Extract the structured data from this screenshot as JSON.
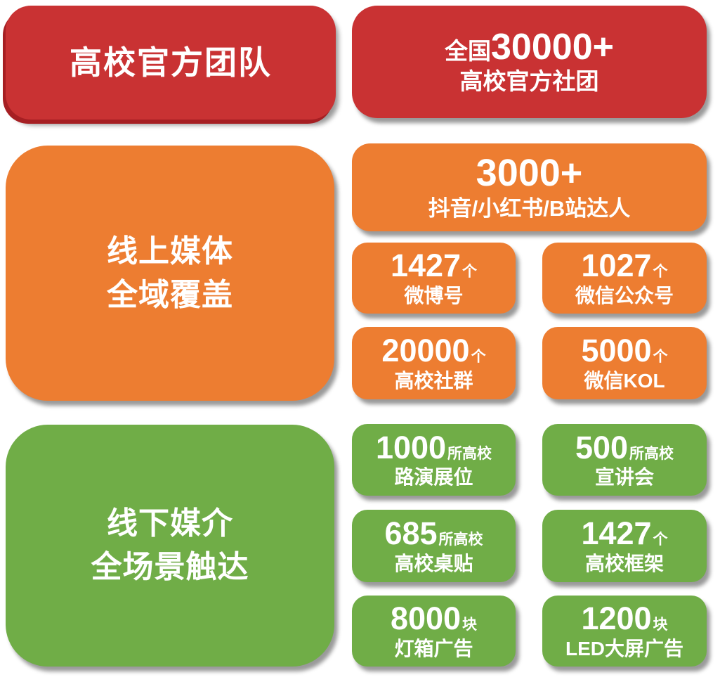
{
  "colors": {
    "red": "#C93233",
    "red_dark": "#A61F23",
    "orange": "#ED7D31",
    "green": "#70AD47",
    "text": "#FFFFFF",
    "background": "#FFFFFF"
  },
  "red_section": {
    "left_title": "高校官方团队",
    "right_card": {
      "prefix": "全国",
      "number": "30000+",
      "label": "高校官方社团"
    }
  },
  "orange_section": {
    "left_title_line1": "线上媒体",
    "left_title_line2": "全域覆盖",
    "wide_card": {
      "number": "3000+",
      "label": "抖音/小红书/B站达人"
    },
    "cells": [
      {
        "number": "1427",
        "unit": "个",
        "label": "微博号"
      },
      {
        "number": "1027",
        "unit": "个",
        "label": "微信公众号"
      },
      {
        "number": "20000",
        "unit": "个",
        "label": "高校社群"
      },
      {
        "number": "5000",
        "unit": "个",
        "label": "微信KOL"
      }
    ]
  },
  "green_section": {
    "left_title_line1": "线下媒介",
    "left_title_line2": "全场景触达",
    "cells": [
      {
        "number": "1000",
        "unit": "所高校",
        "label": "路演展位"
      },
      {
        "number": "500",
        "unit": "所高校",
        "label": "宣讲会"
      },
      {
        "number": "685",
        "unit": "所高校",
        "label": "高校桌贴"
      },
      {
        "number": "1427",
        "unit": "个",
        "label": "高校框架"
      },
      {
        "number": "8000",
        "unit": "块",
        "label": "灯箱广告"
      },
      {
        "number": "1200",
        "unit": "块",
        "label": "LED大屏广告"
      }
    ]
  }
}
